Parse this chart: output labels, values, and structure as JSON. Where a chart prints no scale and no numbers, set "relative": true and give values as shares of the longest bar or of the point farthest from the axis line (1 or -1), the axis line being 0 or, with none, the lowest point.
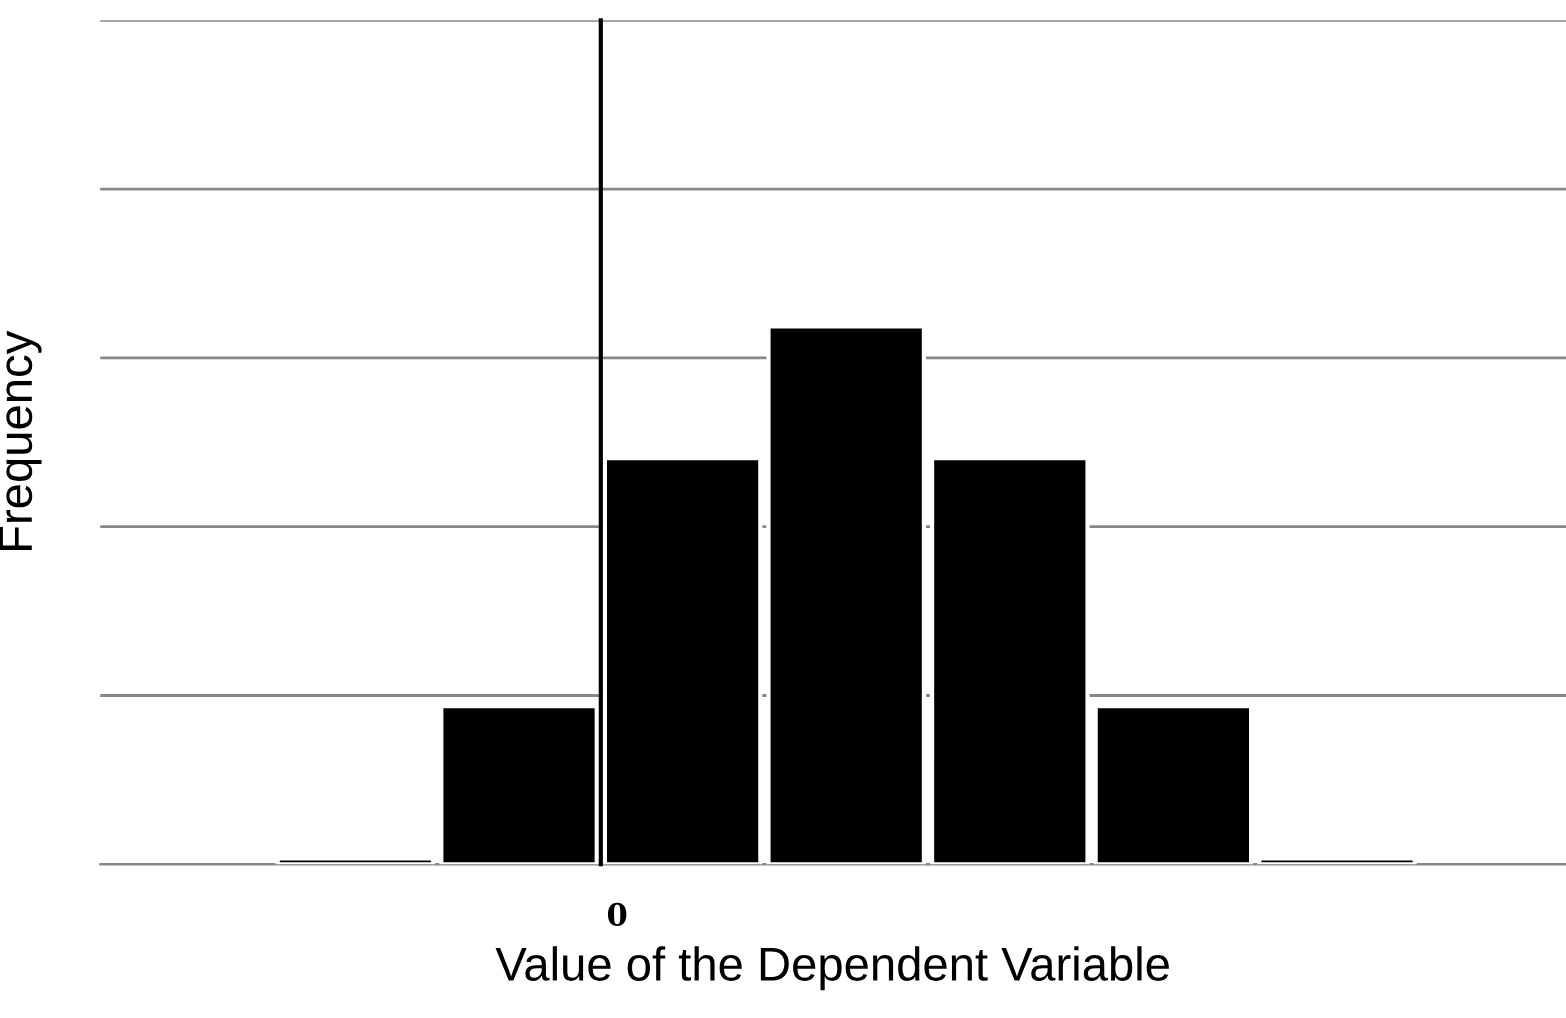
{
  "chart_data": {
    "type": "bar",
    "relative": true,
    "xlabel": "Value of the Dependent Variable",
    "ylabel": "Frequency",
    "categories": [
      null,
      null,
      null,
      null,
      null,
      null,
      null
    ],
    "values": [
      0.011,
      0.294,
      0.755,
      1,
      0.755,
      0.294,
      0.011
    ],
    "color": "#000000",
    "grid": "y",
    "annotations": [
      "0"
    ]
  }
}
